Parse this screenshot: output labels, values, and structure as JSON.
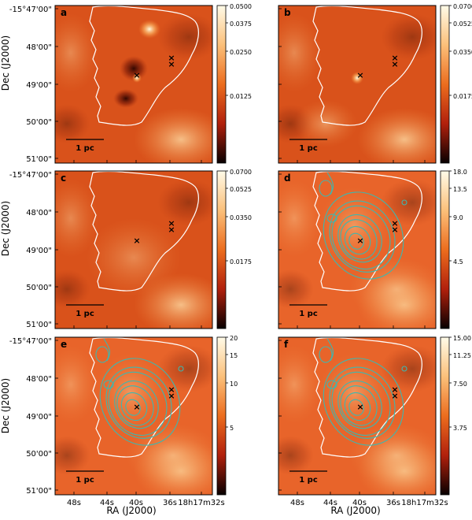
{
  "figure": {
    "axis_xlabel": "RA (J2000)",
    "axis_ylabel": "Dec (J2000)",
    "x_ticks": [
      "48s",
      "44s",
      "40s",
      "36s",
      "18h17m32s"
    ],
    "y_ticks": [
      "-15°47'00\"",
      "48'00\"",
      "49'00\"",
      "50'00\"",
      "51'00\""
    ],
    "scalebar_label": "1 pc",
    "colors": {
      "map_base": "#e2581d",
      "contour": "#3cb8b0",
      "outline": "#ffffff",
      "marker": "#1b1bd6"
    }
  },
  "chart_data": [
    {
      "type": "heatmap",
      "panel": "a",
      "colorbar_ticks": [
        "0.0500",
        "0.0375",
        "0.0250",
        "0.0125"
      ],
      "has_contours": false,
      "markers": [
        "source-1",
        "source-2",
        "source-3"
      ]
    },
    {
      "type": "heatmap",
      "panel": "b",
      "colorbar_ticks": [
        "0.0700",
        "0.0525",
        "0.0350",
        "0.0175"
      ],
      "has_contours": false,
      "markers": [
        "source-1",
        "source-2",
        "source-3"
      ]
    },
    {
      "type": "heatmap",
      "panel": "c",
      "colorbar_ticks": [
        "0.0700",
        "0.0525",
        "0.0350",
        "0.0175"
      ],
      "has_contours": false,
      "markers": [
        "source-1",
        "source-2",
        "source-3"
      ]
    },
    {
      "type": "heatmap",
      "panel": "d",
      "colorbar_ticks": [
        "18.0",
        "13.5",
        "9.0",
        "4.5"
      ],
      "has_contours": true,
      "markers": [
        "source-1",
        "source-2",
        "source-3"
      ]
    },
    {
      "type": "heatmap",
      "panel": "e",
      "colorbar_ticks": [
        "20",
        "15",
        "10",
        "5"
      ],
      "has_contours": true,
      "markers": [
        "source-1",
        "source-2",
        "source-3"
      ]
    },
    {
      "type": "heatmap",
      "panel": "f",
      "colorbar_ticks": [
        "15.00",
        "11.25",
        "7.50",
        "3.75"
      ],
      "has_contours": true,
      "markers": [
        "source-1",
        "source-2",
        "source-3"
      ]
    }
  ]
}
